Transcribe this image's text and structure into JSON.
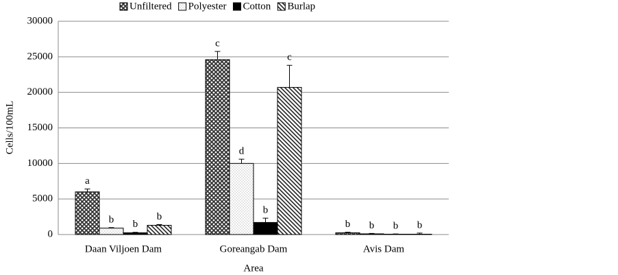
{
  "chart_data": {
    "type": "bar",
    "y_label": "Cells/100mL",
    "x_label": "Area",
    "categories": [
      "Daan Viljoen Dam",
      "Goreangab Dam",
      "Avis Dam"
    ],
    "series": [
      {
        "name": "Unfiltered",
        "color": "#333333",
        "values": [
          6000,
          24600,
          250
        ],
        "errors": [
          400,
          1150,
          80
        ],
        "letters": [
          "a",
          "c",
          "b"
        ]
      },
      {
        "name": "Polyester",
        "color": "#bbbbbb",
        "values": [
          900,
          10000,
          100
        ],
        "errors": [
          80,
          600,
          60
        ],
        "letters": [
          "b",
          "d",
          "b"
        ]
      },
      {
        "name": "Cotton",
        "color": "#000000",
        "values": [
          250,
          1700,
          50
        ],
        "errors": [
          60,
          600,
          40
        ],
        "letters": [
          "b",
          "b",
          "b"
        ]
      },
      {
        "name": "Burlap",
        "color": "#222222",
        "values": [
          1300,
          20700,
          50
        ],
        "errors": [
          100,
          3100,
          150
        ],
        "letters": [
          "b",
          "c",
          "b"
        ]
      }
    ],
    "ylim": [
      0,
      30000
    ],
    "yticks": [
      0,
      5000,
      10000,
      15000,
      20000,
      25000,
      30000
    ],
    "grid": true
  }
}
